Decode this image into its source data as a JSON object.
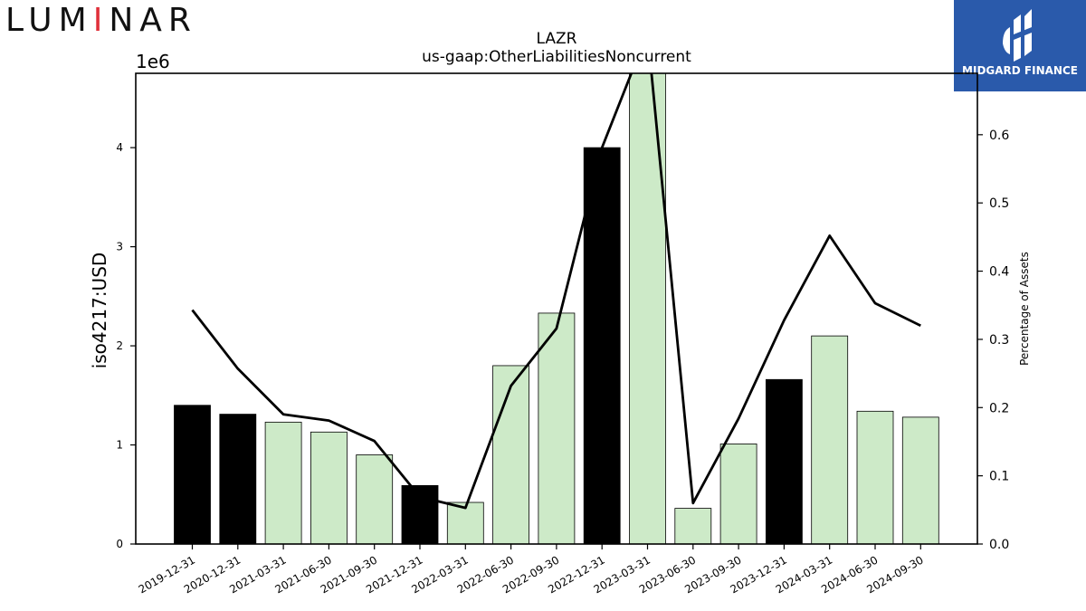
{
  "branding": {
    "logo_text": "LUMINAR",
    "badge_text": "MIDGARD FINANCE"
  },
  "chart_data": {
    "type": "bar",
    "title": "LAZR",
    "subtitle": "us-gaap:OtherLiabilitiesNoncurrent",
    "ylabel": "iso4217:USD",
    "y_multiplier_label": "1e6",
    "y2label": "Percentage of Assets",
    "ylim": [
      0,
      4750000
    ],
    "y2lim": [
      0,
      0.69
    ],
    "yticks": [
      "0",
      "1",
      "2",
      "3",
      "4"
    ],
    "y2ticks": [
      "0.0",
      "0.1",
      "0.2",
      "0.3",
      "0.4",
      "0.5",
      "0.6"
    ],
    "categories": [
      "2019-12-31",
      "2020-12-31",
      "2021-03-31",
      "2021-06-30",
      "2021-09-30",
      "2021-12-31",
      "2022-03-31",
      "2022-06-30",
      "2022-09-30",
      "2022-12-31",
      "2023-03-31",
      "2023-06-30",
      "2023-09-30",
      "2023-12-31",
      "2024-03-31",
      "2024-06-30",
      "2024-09-30"
    ],
    "series": [
      {
        "type": "bar",
        "values": [
          1400000,
          1310000,
          1230000,
          1130000,
          900000,
          590000,
          420000,
          1800000,
          2330000,
          4000000,
          4900000,
          360000,
          1010000,
          1660000,
          2100000,
          1340000,
          1280000
        ],
        "colors": [
          "#000000",
          "#000000",
          "#cdeac8",
          "#cdeac8",
          "#cdeac8",
          "#000000",
          "#cdeac8",
          "#cdeac8",
          "#cdeac8",
          "#000000",
          "#cdeac8",
          "#cdeac8",
          "#cdeac8",
          "#000000",
          "#cdeac8",
          "#cdeac8",
          "#cdeac8"
        ]
      },
      {
        "type": "line",
        "axis": "right",
        "color": "#000000",
        "values": [
          0.343,
          0.257,
          0.19,
          0.181,
          0.151,
          0.069,
          0.053,
          0.232,
          0.316,
          0.581,
          0.75,
          0.06,
          0.184,
          0.328,
          0.452,
          0.353,
          0.32
        ]
      }
    ],
    "grid": false
  }
}
